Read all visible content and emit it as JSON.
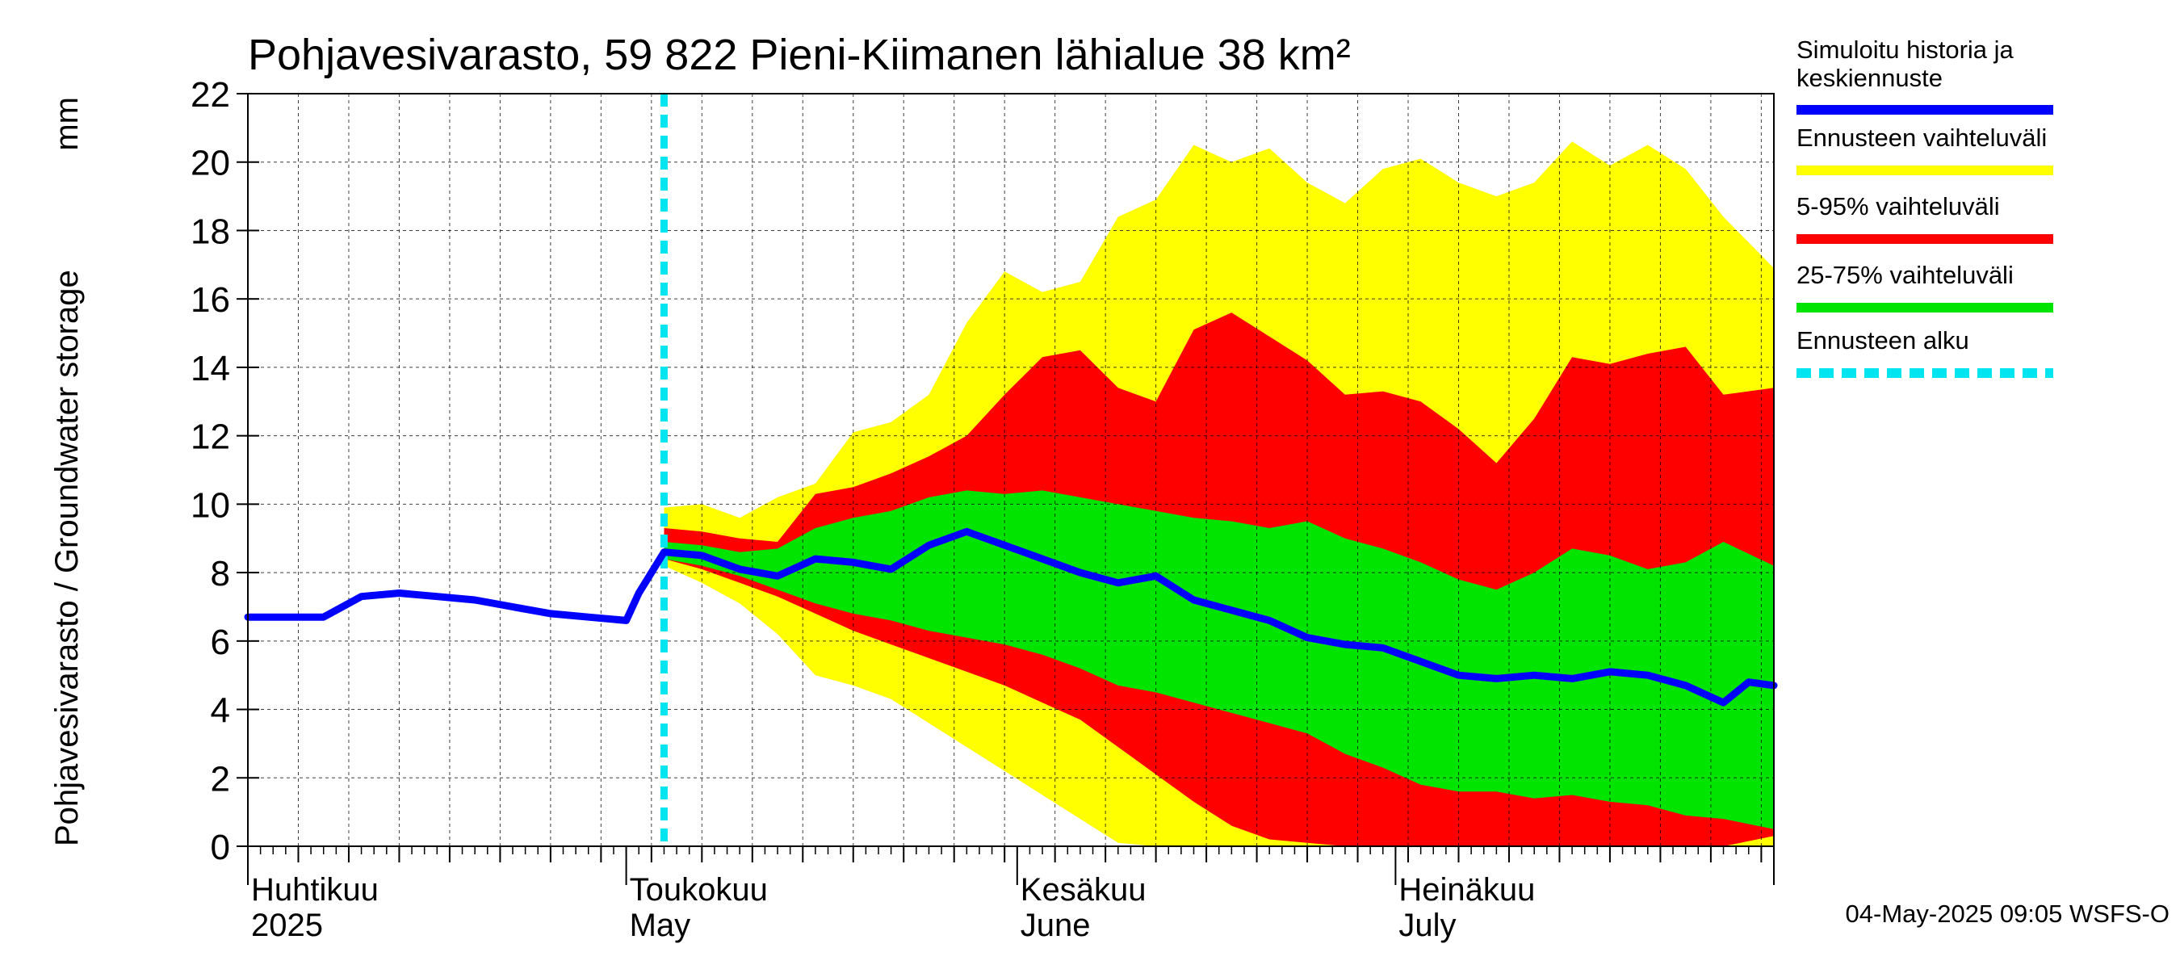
{
  "chart_data": {
    "type": "area",
    "title": "Pohjavesivarasto, 59 822 Pieni-Kiimanen lähialue 38 km²",
    "ylabel": "Pohjavesivarasto / Groundwater storage",
    "yunit": "mm",
    "ylim": [
      0,
      22
    ],
    "yticks": [
      "0",
      "2",
      "4",
      "6",
      "8",
      "10",
      "12",
      "14",
      "16",
      "18",
      "20",
      "22"
    ],
    "grid": true,
    "x_axis": {
      "start": "2025-04-01",
      "end": "2025-07-31",
      "month_labels": [
        {
          "date": "2025-04-01",
          "fi": "Huhtikuu",
          "en": "2025"
        },
        {
          "date": "2025-05-01",
          "fi": "Toukokuu",
          "en": "May"
        },
        {
          "date": "2025-06-01",
          "fi": "Kesäkuu",
          "en": "June"
        },
        {
          "date": "2025-07-01",
          "fi": "Heinäkuu",
          "en": "July"
        }
      ]
    },
    "forecast_start": "2025-05-04",
    "series": [
      {
        "name": "Ennusteen vaihteluväli",
        "color": "#ffff00",
        "dates": [
          "2025-05-04",
          "2025-05-07",
          "2025-05-10",
          "2025-05-13",
          "2025-05-16",
          "2025-05-19",
          "2025-05-22",
          "2025-05-25",
          "2025-05-28",
          "2025-05-31",
          "2025-06-03",
          "2025-06-06",
          "2025-06-09",
          "2025-06-12",
          "2025-06-15",
          "2025-06-18",
          "2025-06-21",
          "2025-06-24",
          "2025-06-27",
          "2025-06-30",
          "2025-07-03",
          "2025-07-06",
          "2025-07-09",
          "2025-07-12",
          "2025-07-15",
          "2025-07-18",
          "2025-07-21",
          "2025-07-24",
          "2025-07-27",
          "2025-07-31"
        ],
        "upper": [
          9.9,
          10.0,
          9.6,
          10.2,
          10.6,
          12.1,
          12.4,
          13.2,
          15.3,
          16.8,
          16.2,
          16.5,
          18.4,
          18.9,
          20.5,
          20.0,
          20.4,
          19.4,
          18.8,
          19.8,
          20.1,
          19.4,
          19.0,
          19.4,
          20.6,
          19.9,
          20.5,
          19.8,
          18.4,
          16.9
        ],
        "lower": [
          8.2,
          7.7,
          7.1,
          6.2,
          5.0,
          4.7,
          4.3,
          3.6,
          2.9,
          2.2,
          1.5,
          0.8,
          0.1,
          0,
          0,
          0,
          0,
          0,
          0,
          0,
          0,
          0,
          0,
          0,
          0,
          0,
          0,
          0,
          0,
          0
        ]
      },
      {
        "name": "5-95% vaihteluväli",
        "color": "#ff0000",
        "dates": [
          "2025-05-04",
          "2025-05-07",
          "2025-05-10",
          "2025-05-13",
          "2025-05-16",
          "2025-05-19",
          "2025-05-22",
          "2025-05-25",
          "2025-05-28",
          "2025-05-31",
          "2025-06-03",
          "2025-06-06",
          "2025-06-09",
          "2025-06-12",
          "2025-06-15",
          "2025-06-18",
          "2025-06-21",
          "2025-06-24",
          "2025-06-27",
          "2025-06-30",
          "2025-07-03",
          "2025-07-06",
          "2025-07-09",
          "2025-07-12",
          "2025-07-15",
          "2025-07-18",
          "2025-07-21",
          "2025-07-24",
          "2025-07-27",
          "2025-07-31"
        ],
        "upper": [
          9.3,
          9.2,
          9.0,
          8.9,
          10.3,
          10.5,
          10.9,
          11.4,
          12.0,
          13.2,
          14.3,
          14.5,
          13.4,
          13.0,
          15.1,
          15.6,
          14.9,
          14.2,
          13.2,
          13.3,
          13.0,
          12.2,
          11.2,
          12.5,
          14.3,
          14.1,
          14.4,
          14.6,
          13.2,
          13.4
        ],
        "lower": [
          8.4,
          8.1,
          7.7,
          7.3,
          6.8,
          6.3,
          5.9,
          5.5,
          5.1,
          4.7,
          4.2,
          3.7,
          2.9,
          2.1,
          1.3,
          0.6,
          0.2,
          0.1,
          0,
          0,
          0,
          0,
          0,
          0,
          0,
          0,
          0,
          0,
          0,
          0.3
        ]
      },
      {
        "name": "25-75% vaihteluväli",
        "color": "#00e400",
        "dates": [
          "2025-05-04",
          "2025-05-07",
          "2025-05-10",
          "2025-05-13",
          "2025-05-16",
          "2025-05-19",
          "2025-05-22",
          "2025-05-25",
          "2025-05-28",
          "2025-05-31",
          "2025-06-03",
          "2025-06-06",
          "2025-06-09",
          "2025-06-12",
          "2025-06-15",
          "2025-06-18",
          "2025-06-21",
          "2025-06-24",
          "2025-06-27",
          "2025-06-30",
          "2025-07-03",
          "2025-07-06",
          "2025-07-09",
          "2025-07-12",
          "2025-07-15",
          "2025-07-18",
          "2025-07-21",
          "2025-07-24",
          "2025-07-27",
          "2025-07-31"
        ],
        "upper": [
          8.9,
          8.8,
          8.6,
          8.7,
          9.3,
          9.6,
          9.8,
          10.2,
          10.4,
          10.3,
          10.4,
          10.2,
          10.0,
          9.8,
          9.6,
          9.5,
          9.3,
          9.5,
          9.0,
          8.7,
          8.3,
          7.8,
          7.5,
          8.0,
          8.7,
          8.5,
          8.1,
          8.3,
          8.9,
          8.2
        ],
        "lower": [
          8.4,
          8.2,
          7.9,
          7.5,
          7.1,
          6.8,
          6.6,
          6.3,
          6.1,
          5.9,
          5.6,
          5.2,
          4.7,
          4.5,
          4.2,
          3.9,
          3.6,
          3.3,
          2.7,
          2.3,
          1.8,
          1.6,
          1.6,
          1.4,
          1.5,
          1.3,
          1.2,
          0.9,
          0.8,
          0.5
        ]
      },
      {
        "name": "Simuloitu historia ja keskiennuste",
        "color": "#0000ff",
        "dates": [
          "2025-04-01",
          "2025-04-04",
          "2025-04-07",
          "2025-04-10",
          "2025-04-13",
          "2025-04-16",
          "2025-04-19",
          "2025-04-22",
          "2025-04-25",
          "2025-04-28",
          "2025-05-01",
          "2025-05-02",
          "2025-05-04",
          "2025-05-07",
          "2025-05-10",
          "2025-05-13",
          "2025-05-16",
          "2025-05-19",
          "2025-05-22",
          "2025-05-25",
          "2025-05-28",
          "2025-05-31",
          "2025-06-03",
          "2025-06-06",
          "2025-06-09",
          "2025-06-12",
          "2025-06-15",
          "2025-06-18",
          "2025-06-21",
          "2025-06-24",
          "2025-06-27",
          "2025-06-30",
          "2025-07-03",
          "2025-07-06",
          "2025-07-09",
          "2025-07-12",
          "2025-07-15",
          "2025-07-18",
          "2025-07-21",
          "2025-07-24",
          "2025-07-27",
          "2025-07-29",
          "2025-07-31"
        ],
        "values": [
          6.7,
          6.7,
          6.7,
          7.3,
          7.4,
          7.3,
          7.2,
          7.0,
          6.8,
          6.7,
          6.6,
          7.4,
          8.6,
          8.5,
          8.1,
          7.9,
          8.4,
          8.3,
          8.1,
          8.8,
          9.2,
          8.8,
          8.4,
          8.0,
          7.7,
          7.9,
          7.2,
          6.9,
          6.6,
          6.1,
          5.9,
          5.8,
          5.4,
          5.0,
          4.9,
          5.0,
          4.9,
          5.1,
          5.0,
          4.7,
          4.2,
          4.8,
          4.7
        ]
      }
    ],
    "legend": {
      "position": "right",
      "items": [
        {
          "label_line1": "Simuloitu historia ja",
          "label_line2": "keskiennuste",
          "color": "#0000ff",
          "style": "solid"
        },
        {
          "label_line1": "Ennusteen vaihteluväli",
          "color": "#ffff00",
          "style": "solid"
        },
        {
          "label_line1": "5-95% vaihteluväli",
          "color": "#ff0000",
          "style": "solid"
        },
        {
          "label_line1": "25-75% vaihteluväli",
          "color": "#00e400",
          "style": "solid"
        },
        {
          "label_line1": "Ennusteen alku",
          "color": "#00e5f0",
          "style": "dashed"
        }
      ]
    },
    "footer": "04-May-2025 09:05 WSFS-O"
  }
}
